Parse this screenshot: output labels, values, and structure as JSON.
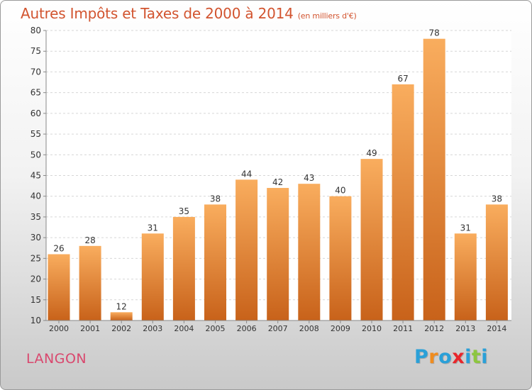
{
  "title": "Autres Impôts et Taxes de 2000 à 2014",
  "subtitle": "(en milliers d'€)",
  "commune": "LANGON",
  "logo": {
    "text": "Proxiti",
    "colors": [
      "#2aa0d8",
      "#f08c1e",
      "#2aa0d8",
      "#e8262b",
      "#2aa0d8",
      "#8dc63f",
      "#2aa0d8"
    ]
  },
  "colors": {
    "bar_light": "#f7a95a",
    "bar_dark": "#c8621a",
    "title": "#d2542f",
    "commune": "#d9486e"
  },
  "chart_data": {
    "type": "bar",
    "title": "Autres Impôts et Taxes de 2000 à 2014",
    "subtitle": "(en milliers d'€)",
    "categories": [
      "2000",
      "2001",
      "2002",
      "2003",
      "2004",
      "2005",
      "2006",
      "2007",
      "2008",
      "2009",
      "2010",
      "2011",
      "2012",
      "2013",
      "2014"
    ],
    "values": [
      26,
      28,
      12,
      31,
      35,
      38,
      44,
      42,
      43,
      40,
      49,
      67,
      78,
      31,
      38
    ],
    "ylim": [
      10,
      80
    ],
    "yticks": [
      10,
      15,
      20,
      25,
      30,
      35,
      40,
      45,
      50,
      55,
      60,
      65,
      70,
      75,
      80
    ],
    "grid": true,
    "xlabel": "",
    "ylabel": ""
  }
}
